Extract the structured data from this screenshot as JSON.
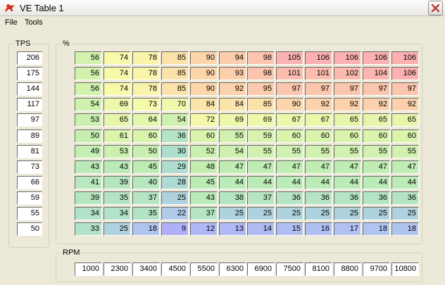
{
  "window": {
    "title": "VE Table 1"
  },
  "menu": [
    "File",
    "Tools"
  ],
  "tps": {
    "label": "TPS",
    "values": [
      "206",
      "175",
      "144",
      "117",
      "97",
      "89",
      "81",
      "73",
      "66",
      "59",
      "55",
      "50"
    ]
  },
  "table": {
    "label": "%",
    "rows": [
      [
        "56",
        "74",
        "78",
        "85",
        "90",
        "94",
        "98",
        "105",
        "106",
        "106",
        "106",
        "106"
      ],
      [
        "56",
        "74",
        "78",
        "85",
        "90",
        "93",
        "98",
        "101",
        "101",
        "102",
        "104",
        "106"
      ],
      [
        "56",
        "74",
        "78",
        "85",
        "90",
        "92",
        "95",
        "97",
        "97",
        "97",
        "97",
        "97"
      ],
      [
        "54",
        "69",
        "73",
        "70",
        "84",
        "84",
        "85",
        "90",
        "92",
        "92",
        "92",
        "92"
      ],
      [
        "53",
        "65",
        "64",
        "54",
        "72",
        "69",
        "69",
        "67",
        "67",
        "65",
        "65",
        "65"
      ],
      [
        "50",
        "61",
        "60",
        "36",
        "60",
        "55",
        "59",
        "60",
        "60",
        "60",
        "60",
        "60"
      ],
      [
        "49",
        "53",
        "50",
        "30",
        "52",
        "54",
        "55",
        "55",
        "55",
        "55",
        "55",
        "55"
      ],
      [
        "43",
        "43",
        "45",
        "29",
        "48",
        "47",
        "47",
        "47",
        "47",
        "47",
        "47",
        "47"
      ],
      [
        "41",
        "39",
        "40",
        "28",
        "45",
        "44",
        "44",
        "44",
        "44",
        "44",
        "44",
        "44"
      ],
      [
        "39",
        "35",
        "37",
        "25",
        "43",
        "38",
        "37",
        "36",
        "36",
        "36",
        "36",
        "36"
      ],
      [
        "34",
        "34",
        "35",
        "22",
        "37",
        "25",
        "25",
        "25",
        "25",
        "25",
        "25",
        "25"
      ],
      [
        "33",
        "25",
        "18",
        "9",
        "12",
        "13",
        "14",
        "15",
        "16",
        "17",
        "18",
        "18"
      ]
    ]
  },
  "rpm": {
    "label": "RPM",
    "values": [
      "1000",
      "2300",
      "3400",
      "4500",
      "5500",
      "6300",
      "6900",
      "7500",
      "8100",
      "8800",
      "9700",
      "10800"
    ]
  },
  "colors": {
    "window_bg": "#ece9d8",
    "close_icon": "#c0392b"
  },
  "icons": {
    "app": "horse-logo-icon",
    "close": "close-icon"
  }
}
